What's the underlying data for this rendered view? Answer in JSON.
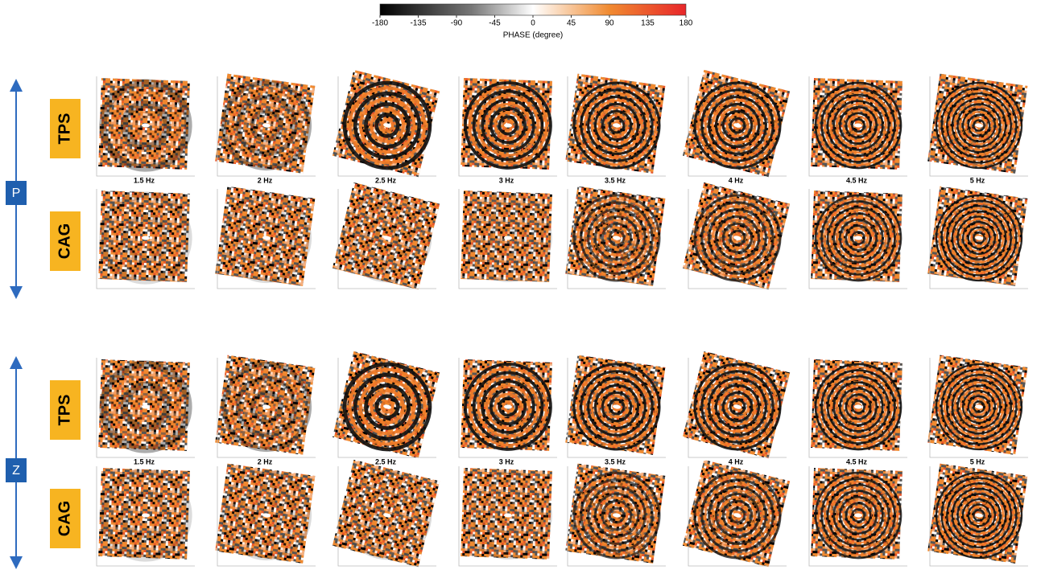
{
  "colorbar": {
    "label": "PHASE (degree)",
    "lim": [
      -180,
      180
    ],
    "ticks": [
      -180,
      -135,
      -90,
      -45,
      0,
      45,
      90,
      135,
      180
    ]
  },
  "groups": [
    {
      "label": "P",
      "rows": [
        {
          "label": "TPS"
        },
        {
          "label": "CAG"
        }
      ],
      "frequencies": [
        "1.5 Hz",
        "2 Hz",
        "2.5 Hz",
        "3 Hz",
        "3.5 Hz",
        "4 Hz",
        "4.5 Hz",
        "5 Hz"
      ]
    },
    {
      "label": "Z",
      "rows": [
        {
          "label": "TPS"
        },
        {
          "label": "CAG"
        }
      ],
      "frequencies": [
        "1.5 Hz",
        "2 Hz",
        "2.5 Hz",
        "3 Hz",
        "3.5 Hz",
        "4 Hz",
        "4.5 Hz",
        "5 Hz"
      ]
    }
  ]
}
